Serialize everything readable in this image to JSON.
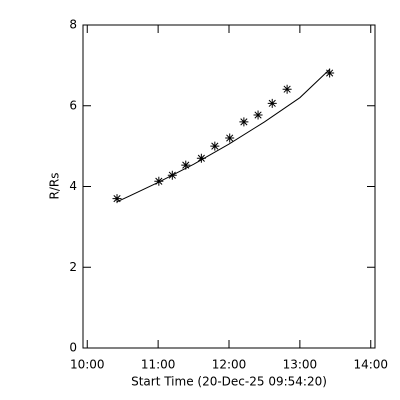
{
  "chart_data": {
    "type": "scatter",
    "xlabel": "Start Time (20-Dec-25 09:54:20)",
    "ylabel": "R/Rs",
    "xlim": [
      9.94,
      14.06
    ],
    "ylim": [
      0,
      8
    ],
    "xticks": [
      {
        "value": 10,
        "label": "10:00"
      },
      {
        "value": 11,
        "label": "11:00"
      },
      {
        "value": 12,
        "label": "12:00"
      },
      {
        "value": 13,
        "label": "13:00"
      },
      {
        "value": 14,
        "label": "14:00"
      }
    ],
    "yticks": [
      0,
      2,
      4,
      6,
      8
    ],
    "color": "#000000",
    "series": [
      {
        "marker": "asterisk",
        "x": [
          10.42,
          11.01,
          11.2,
          11.39,
          11.61,
          11.8,
          12.01,
          12.21,
          12.41,
          12.61,
          12.82,
          13.42
        ],
        "values": [
          3.7,
          4.13,
          4.28,
          4.53,
          4.7,
          5.0,
          5.2,
          5.6,
          5.77,
          6.06,
          6.41,
          6.81
        ]
      },
      {
        "marker": "line",
        "x": [
          10.42,
          11.0,
          11.5,
          12.0,
          12.5,
          13.0,
          13.42
        ],
        "values": [
          3.62,
          4.1,
          4.55,
          5.05,
          5.6,
          6.2,
          6.9
        ]
      }
    ]
  }
}
